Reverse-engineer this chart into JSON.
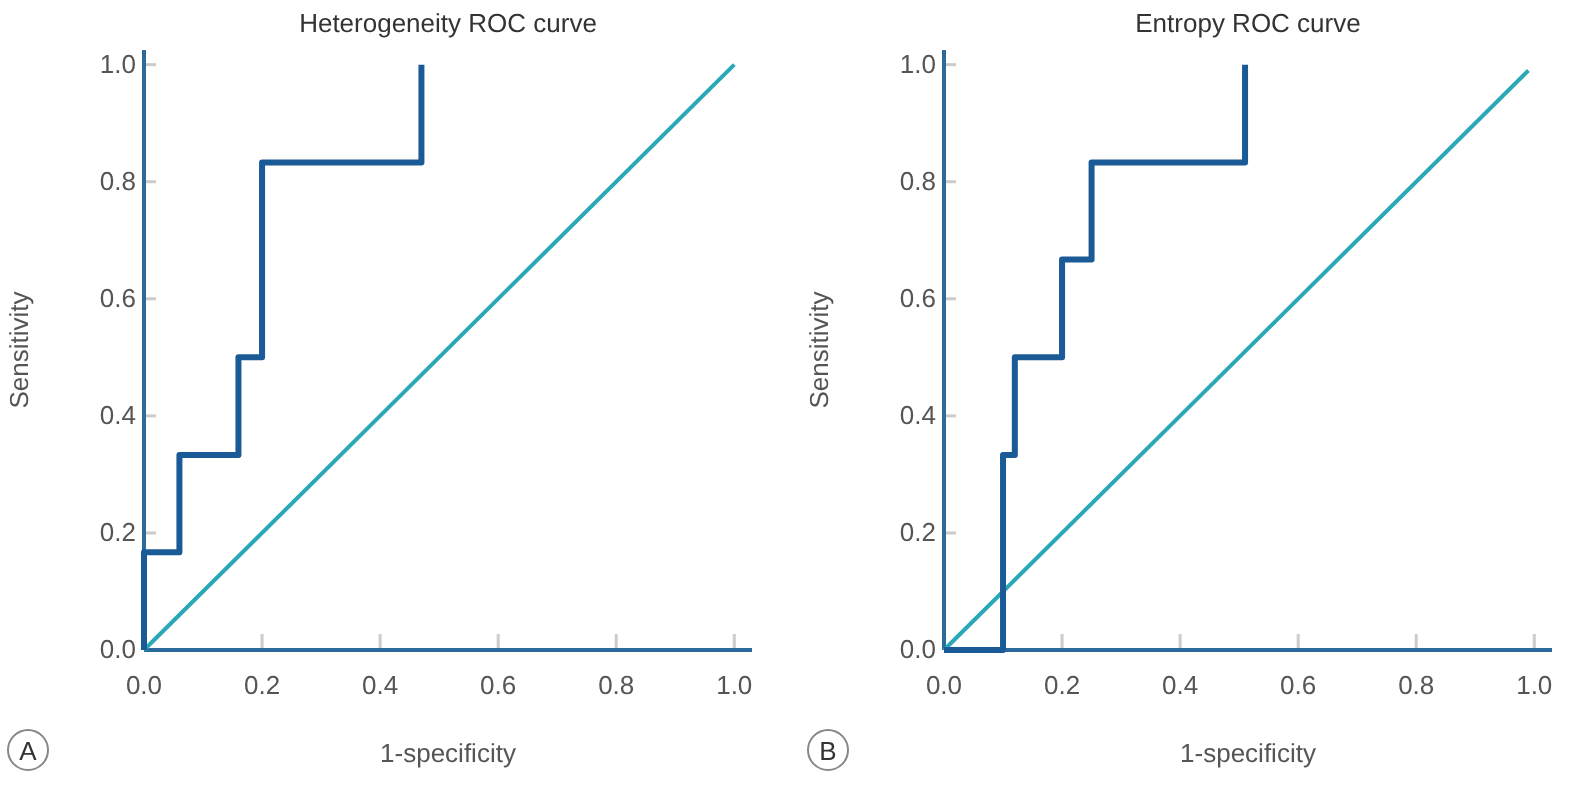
{
  "chart_data": [
    {
      "type": "line",
      "title": "Heterogeneity ROC curve",
      "xlabel": "1-specificity",
      "ylabel": "Sensitivity",
      "annotations": [
        "A"
      ],
      "xlim": [
        0,
        1.03
      ],
      "ylim": [
        0,
        1.025
      ],
      "xticks": [
        {
          "value": 0,
          "label": "0.0"
        },
        {
          "value": 0.2,
          "label": "0.2"
        },
        {
          "value": 0.4,
          "label": "0.4"
        },
        {
          "value": 0.6,
          "label": "0.6"
        },
        {
          "value": 0.8,
          "label": "0.8"
        },
        {
          "value": 1,
          "label": "1.0"
        }
      ],
      "yticks": [
        {
          "value": 0,
          "label": "0.0"
        },
        {
          "value": 0.2,
          "label": "0.2"
        },
        {
          "value": 0.4,
          "label": "0.4"
        },
        {
          "value": 0.6,
          "label": "0.6"
        },
        {
          "value": 0.8,
          "label": "0.8"
        },
        {
          "value": 1,
          "label": "1.0"
        }
      ],
      "grid": false,
      "series": [
        {
          "color": "#2ba8b8",
          "x": [
            0,
            1
          ],
          "values": [
            0,
            1
          ]
        },
        {
          "color": "#1a5a96",
          "x": [
            0,
            0,
            0.06,
            0.06,
            0.16,
            0.16,
            0.2,
            0.2,
            0.47,
            0.47
          ],
          "values": [
            0,
            0.167,
            0.167,
            0.333,
            0.333,
            0.5,
            0.5,
            0.833,
            0.833,
            1
          ]
        }
      ]
    },
    {
      "type": "line",
      "title": "Entropy ROC curve",
      "xlabel": "1-specificity",
      "ylabel": "Sensitivity",
      "annotations": [
        "B"
      ],
      "xlim": [
        0,
        1.03
      ],
      "ylim": [
        0,
        1.025
      ],
      "xticks": [
        {
          "value": 0,
          "label": "0.0"
        },
        {
          "value": 0.2,
          "label": "0.2"
        },
        {
          "value": 0.4,
          "label": "0.4"
        },
        {
          "value": 0.6,
          "label": "0.6"
        },
        {
          "value": 0.8,
          "label": "0.8"
        },
        {
          "value": 1,
          "label": "1.0"
        }
      ],
      "yticks": [
        {
          "value": 0,
          "label": "0.0"
        },
        {
          "value": 0.2,
          "label": "0.2"
        },
        {
          "value": 0.4,
          "label": "0.4"
        },
        {
          "value": 0.6,
          "label": "0.6"
        },
        {
          "value": 0.8,
          "label": "0.8"
        },
        {
          "value": 1,
          "label": "1.0"
        }
      ],
      "grid": false,
      "series": [
        {
          "color": "#2ba8b8",
          "x": [
            0,
            0.99
          ],
          "values": [
            0,
            0.99
          ]
        },
        {
          "color": "#1a5a96",
          "x": [
            0,
            0.1,
            0.1,
            0.12,
            0.12,
            0.2,
            0.2,
            0.25,
            0.25,
            0.51,
            0.51
          ],
          "values": [
            0,
            0,
            0.333,
            0.333,
            0.5,
            0.5,
            0.667,
            0.667,
            0.833,
            0.833,
            1
          ]
        }
      ]
    }
  ]
}
